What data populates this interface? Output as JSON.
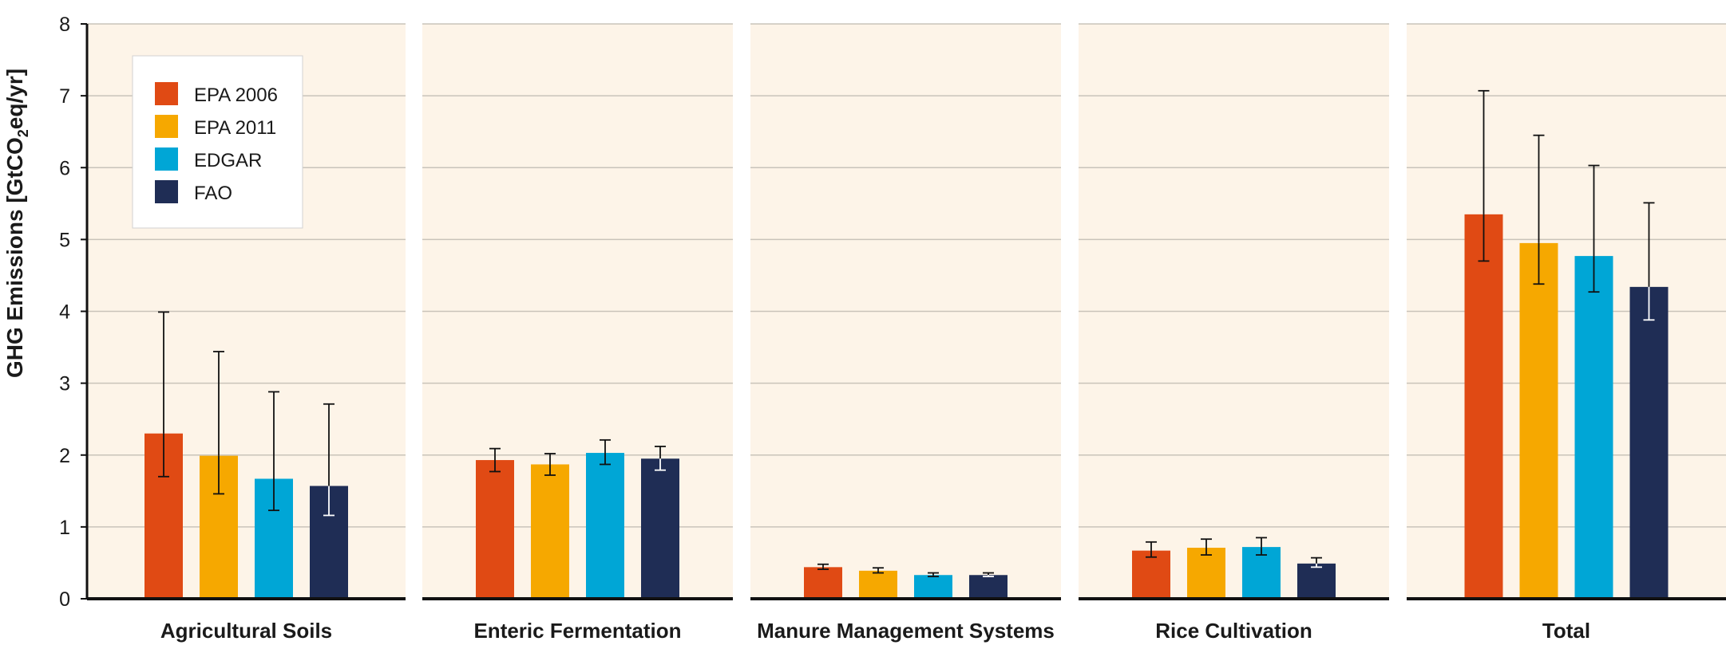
{
  "chart_data": {
    "type": "bar",
    "ylabel": "GHG Emissions [GtCO2eq/yr]",
    "ylabel_parts": {
      "before": "GHG Emissions [GtCO",
      "sub": "2",
      "after": "eq/yr]"
    },
    "ylim": [
      0,
      8
    ],
    "yticks": [
      "0",
      "1",
      "2",
      "3",
      "4",
      "5",
      "6",
      "7",
      "8"
    ],
    "grid": true,
    "legend_position": "top-left",
    "categories": [
      "Agricultural Soils",
      "Enteric Fermentation",
      "Manure Management Systems",
      "Rice Cultivation",
      "Total"
    ],
    "series": [
      {
        "name": "EPA 2006",
        "color": "#e04a14",
        "values": [
          2.3,
          1.93,
          0.44,
          0.67,
          5.35
        ],
        "error_low": [
          1.7,
          1.77,
          0.41,
          0.58,
          4.7
        ],
        "error_high": [
          3.99,
          2.09,
          0.48,
          0.79,
          7.07
        ]
      },
      {
        "name": "EPA 2011",
        "color": "#f6a800",
        "values": [
          1.99,
          1.87,
          0.39,
          0.71,
          4.95
        ],
        "error_low": [
          1.46,
          1.72,
          0.36,
          0.61,
          4.38
        ],
        "error_high": [
          3.44,
          2.02,
          0.43,
          0.83,
          6.45
        ]
      },
      {
        "name": "EDGAR",
        "color": "#00a6d6",
        "values": [
          1.67,
          2.03,
          0.33,
          0.72,
          4.77
        ],
        "error_low": [
          1.23,
          1.87,
          0.31,
          0.61,
          4.27
        ],
        "error_high": [
          2.88,
          2.21,
          0.36,
          0.85,
          6.03
        ]
      },
      {
        "name": "FAO",
        "color": "#1f2d55",
        "values": [
          1.57,
          1.95,
          0.33,
          0.49,
          4.34
        ],
        "error_low": [
          1.16,
          1.79,
          0.31,
          0.44,
          3.88
        ],
        "error_high": [
          2.71,
          2.12,
          0.36,
          0.57,
          5.51
        ]
      }
    ]
  }
}
